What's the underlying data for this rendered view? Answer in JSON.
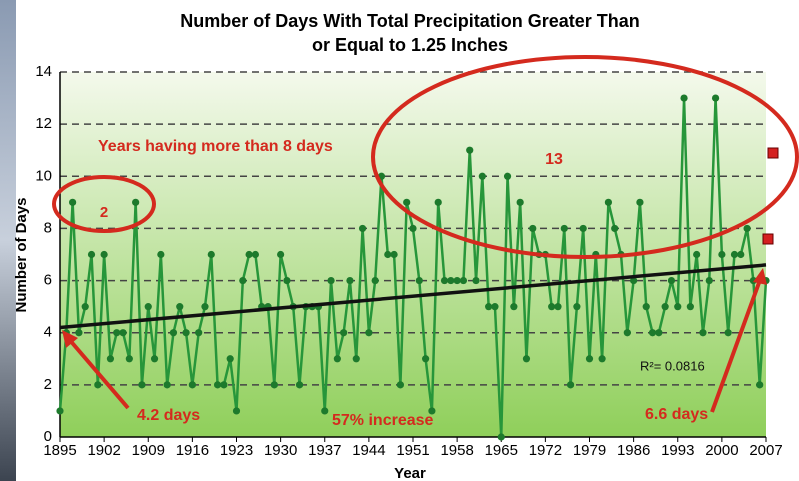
{
  "chart_data": {
    "type": "line",
    "title": "Number of Days With Total Precipitation Greater Than",
    "subtitle": "or Equal to 1.25 Inches",
    "x_label": "Year",
    "y_label": "Number of Days",
    "x": [
      1895,
      1896,
      1897,
      1898,
      1899,
      1900,
      1901,
      1902,
      1903,
      1904,
      1905,
      1906,
      1907,
      1908,
      1909,
      1910,
      1911,
      1912,
      1913,
      1914,
      1915,
      1916,
      1917,
      1918,
      1919,
      1920,
      1921,
      1922,
      1923,
      1924,
      1925,
      1926,
      1927,
      1928,
      1929,
      1930,
      1931,
      1932,
      1933,
      1934,
      1935,
      1936,
      1937,
      1938,
      1939,
      1940,
      1941,
      1942,
      1943,
      1944,
      1945,
      1946,
      1947,
      1948,
      1949,
      1950,
      1951,
      1952,
      1953,
      1954,
      1955,
      1956,
      1957,
      1958,
      1959,
      1960,
      1961,
      1962,
      1963,
      1964,
      1965,
      1966,
      1967,
      1968,
      1969,
      1970,
      1971,
      1972,
      1973,
      1974,
      1975,
      1976,
      1977,
      1978,
      1979,
      1980,
      1981,
      1982,
      1983,
      1984,
      1985,
      1986,
      1987,
      1988,
      1989,
      1990,
      1991,
      1992,
      1993,
      1994,
      1995,
      1996,
      1997,
      1998,
      1999,
      2000,
      2001,
      2002,
      2003,
      2004,
      2005,
      2006,
      2007
    ],
    "series": [
      {
        "color": "#27963a",
        "values": [
          1,
          4,
          9,
          4,
          5,
          7,
          2,
          7,
          3,
          4,
          4,
          3,
          9,
          2,
          5,
          3,
          7,
          2,
          4,
          5,
          4,
          2,
          4,
          5,
          7,
          2,
          2,
          3,
          1,
          6,
          7,
          7,
          5,
          5,
          2,
          7,
          6,
          5,
          2,
          5,
          5,
          5,
          1,
          6,
          3,
          4,
          6,
          3,
          8,
          4,
          6,
          10,
          7,
          7,
          2,
          9,
          8,
          6,
          3,
          1,
          9,
          6,
          6,
          6,
          6,
          11,
          6,
          10,
          5,
          5,
          0,
          10,
          5,
          9,
          3,
          8,
          7,
          7,
          5,
          5,
          8,
          2,
          5,
          8,
          3,
          7,
          3,
          9,
          8,
          7,
          4,
          6,
          9,
          5,
          4,
          4,
          5,
          6,
          5,
          13,
          5,
          7,
          4,
          6,
          13,
          7,
          4,
          7,
          7,
          8,
          6,
          2,
          6
        ]
      }
    ],
    "trendline": {
      "x": [
        1895,
        2007
      ],
      "values": [
        4.2,
        6.6
      ],
      "color": "#111111"
    },
    "xlim": [
      1895,
      2007
    ],
    "xticks": [
      1895,
      1902,
      1909,
      1916,
      1923,
      1930,
      1937,
      1944,
      1951,
      1958,
      1965,
      1972,
      1979,
      1986,
      1993,
      2000,
      2007
    ],
    "ylim": [
      0,
      14
    ],
    "yticks": [
      0,
      2,
      4,
      6,
      8,
      10,
      12,
      14
    ],
    "grid": true,
    "annotations": [
      "Years having more than 8 days",
      "2",
      "13",
      "4.2 days",
      "57% increase",
      "6.6 days",
      "R²= 0.0816"
    ]
  }
}
